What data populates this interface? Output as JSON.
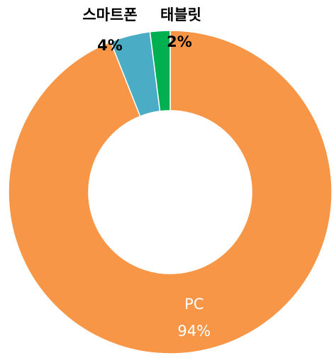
{
  "chart_data": {
    "type": "donut",
    "categories": [
      "PC",
      "스마트폰",
      "태블릿"
    ],
    "values": [
      94,
      4,
      2
    ],
    "value_labels": [
      "94%",
      "4%",
      "2%"
    ],
    "colors": [
      "#f79646",
      "#4bacc6",
      "#00b050"
    ]
  }
}
